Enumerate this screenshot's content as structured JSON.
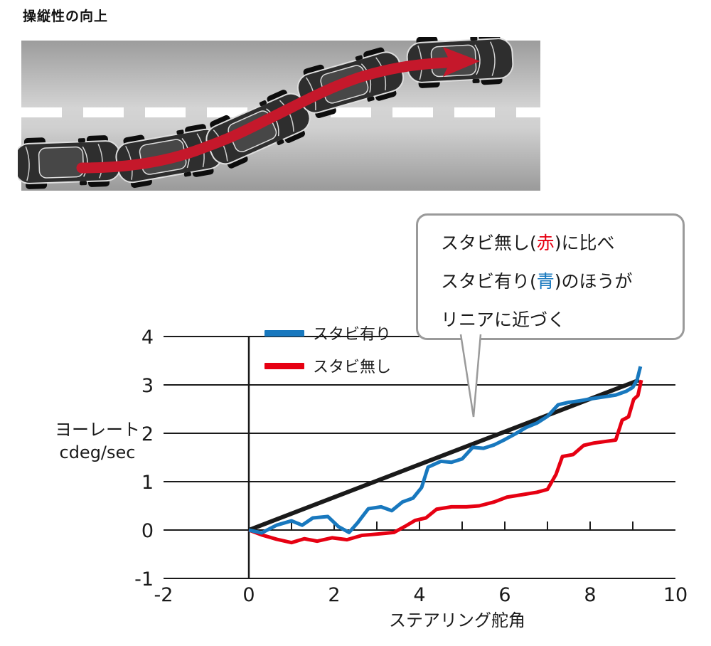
{
  "page": {
    "title": "操縦性の向上"
  },
  "colors": {
    "arrow_red": "#c5182b",
    "line_blue": "#1878be",
    "line_red": "#e60012",
    "reference_black": "#1a1a1a",
    "road_gray": "#a8a8a8",
    "accent_red_text": "#e60012",
    "accent_blue_text": "#1878be"
  },
  "callout": {
    "lines": [
      [
        {
          "text": "スタビ無し("
        },
        {
          "text": "赤",
          "color": "#e60012"
        },
        {
          "text": ")に比べ"
        }
      ],
      [
        {
          "text": "スタビ有り("
        },
        {
          "text": "青",
          "color": "#1878be"
        },
        {
          "text": ")のほうが"
        }
      ],
      [
        {
          "text": "リニアに近づく"
        }
      ]
    ]
  },
  "chart_data": {
    "type": "line",
    "title": "",
    "xlabel": "ステアリング舵角",
    "ylabel_lines": [
      "ヨーレート",
      "cdeg/sec"
    ],
    "xlim": [
      -2,
      10
    ],
    "ylim": [
      -1,
      4
    ],
    "xticks": [
      -2,
      0,
      2,
      4,
      6,
      8,
      10
    ],
    "yticks": [
      4,
      3,
      2,
      1,
      0,
      -1
    ],
    "grid_y": [
      0,
      1,
      2,
      3,
      4
    ],
    "zero_axis_ticks": [
      1,
      2,
      3,
      4,
      5,
      6,
      7,
      8,
      9
    ],
    "legend": [
      {
        "name": "スタビ有り",
        "color": "#1878be"
      },
      {
        "name": "スタビ無し",
        "color": "#e60012"
      }
    ],
    "series": [
      {
        "name": "",
        "role": "linear-reference",
        "color": "#1a1a1a",
        "width": 6,
        "points": [
          [
            0,
            0
          ],
          [
            9.15,
            3.1
          ]
        ]
      },
      {
        "name": "スタビ無し",
        "role": "without-stabilizer",
        "color": "#e60012",
        "width": 5,
        "points": [
          [
            0,
            0
          ],
          [
            0.3,
            -0.1
          ],
          [
            0.65,
            -0.19
          ],
          [
            1.0,
            -0.26
          ],
          [
            1.3,
            -0.18
          ],
          [
            1.6,
            -0.23
          ],
          [
            1.95,
            -0.16
          ],
          [
            2.3,
            -0.2
          ],
          [
            2.65,
            -0.11
          ],
          [
            3.05,
            -0.08
          ],
          [
            3.4,
            -0.05
          ],
          [
            3.65,
            0.07
          ],
          [
            3.9,
            0.2
          ],
          [
            4.15,
            0.25
          ],
          [
            4.4,
            0.43
          ],
          [
            4.75,
            0.48
          ],
          [
            5.1,
            0.48
          ],
          [
            5.4,
            0.5
          ],
          [
            5.75,
            0.58
          ],
          [
            6.05,
            0.68
          ],
          [
            6.4,
            0.73
          ],
          [
            6.75,
            0.78
          ],
          [
            7.0,
            0.84
          ],
          [
            7.2,
            1.15
          ],
          [
            7.35,
            1.52
          ],
          [
            7.6,
            1.56
          ],
          [
            7.85,
            1.75
          ],
          [
            8.1,
            1.8
          ],
          [
            8.35,
            1.83
          ],
          [
            8.6,
            1.86
          ],
          [
            8.75,
            2.27
          ],
          [
            8.9,
            2.34
          ],
          [
            9.02,
            2.7
          ],
          [
            9.12,
            2.78
          ],
          [
            9.2,
            3.1
          ]
        ]
      },
      {
        "name": "スタビ有り",
        "role": "with-stabilizer",
        "color": "#1878be",
        "width": 5,
        "points": [
          [
            0,
            0
          ],
          [
            0.3,
            -0.06
          ],
          [
            0.65,
            0.1
          ],
          [
            1.0,
            0.19
          ],
          [
            1.25,
            0.1
          ],
          [
            1.5,
            0.25
          ],
          [
            1.85,
            0.28
          ],
          [
            2.1,
            0.07
          ],
          [
            2.35,
            -0.05
          ],
          [
            2.55,
            0.15
          ],
          [
            2.8,
            0.44
          ],
          [
            3.1,
            0.48
          ],
          [
            3.35,
            0.4
          ],
          [
            3.6,
            0.58
          ],
          [
            3.85,
            0.66
          ],
          [
            4.05,
            0.88
          ],
          [
            4.2,
            1.3
          ],
          [
            4.5,
            1.42
          ],
          [
            4.75,
            1.4
          ],
          [
            5.0,
            1.47
          ],
          [
            5.25,
            1.71
          ],
          [
            5.5,
            1.69
          ],
          [
            5.75,
            1.76
          ],
          [
            6.0,
            1.87
          ],
          [
            6.25,
            1.99
          ],
          [
            6.5,
            2.12
          ],
          [
            6.75,
            2.21
          ],
          [
            7.0,
            2.35
          ],
          [
            7.25,
            2.59
          ],
          [
            7.5,
            2.64
          ],
          [
            7.75,
            2.67
          ],
          [
            8.0,
            2.71
          ],
          [
            8.3,
            2.75
          ],
          [
            8.6,
            2.79
          ],
          [
            8.85,
            2.87
          ],
          [
            9.0,
            2.95
          ],
          [
            9.1,
            3.1
          ],
          [
            9.18,
            3.38
          ]
        ]
      }
    ]
  }
}
